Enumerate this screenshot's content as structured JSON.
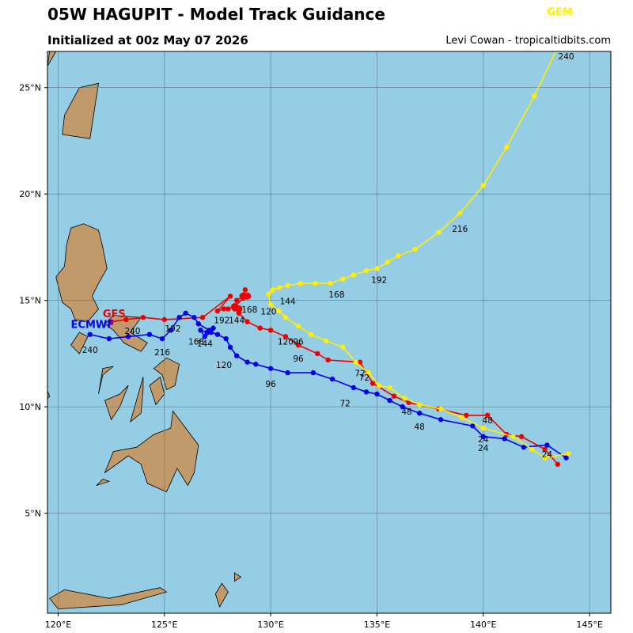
{
  "header": {
    "title": "05W HAGUPIT - Model Track Guidance",
    "subtitle": "Initialized at 00z May 07 2026",
    "credit": "Levi Cowan - tropicaltidbits.com"
  },
  "map": {
    "lon_range": [
      119.5,
      146.0
    ],
    "lat_range": [
      0.3,
      26.7
    ],
    "ocean_color": "#94cde4",
    "land_color": "#c09a6b",
    "lon_ticks": [
      {
        "value": 120,
        "label": "120°E"
      },
      {
        "value": 125,
        "label": "125°E"
      },
      {
        "value": 130,
        "label": "130°E"
      },
      {
        "value": 135,
        "label": "135°E"
      },
      {
        "value": 140,
        "label": "140°E"
      },
      {
        "value": 145,
        "label": "145°E"
      }
    ],
    "lat_ticks": [
      {
        "value": 5,
        "label": "5°N"
      },
      {
        "value": 10,
        "label": "10°N"
      },
      {
        "value": 15,
        "label": "15°N"
      },
      {
        "value": 20,
        "label": "20°N"
      },
      {
        "value": 25,
        "label": "25°N"
      }
    ]
  },
  "tracks": [
    {
      "name": "GFS",
      "color": "#ee0000",
      "points": [
        [
          143.5,
          7.3
        ],
        [
          142.9,
          8.0
        ],
        [
          141.8,
          8.6
        ],
        [
          141.1,
          8.7
        ],
        [
          140.2,
          9.6
        ],
        [
          139.2,
          9.6
        ],
        [
          137.9,
          9.9
        ],
        [
          136.5,
          10.2
        ],
        [
          135.8,
          10.5
        ],
        [
          134.8,
          11.1
        ],
        [
          134.2,
          12.1
        ],
        [
          132.7,
          12.2
        ],
        [
          132.2,
          12.5
        ],
        [
          131.3,
          12.9
        ],
        [
          130.7,
          13.3
        ],
        [
          130.0,
          13.6
        ],
        [
          129.5,
          13.7
        ],
        [
          128.9,
          14.0
        ],
        [
          128.5,
          14.4
        ],
        [
          128.3,
          14.6
        ],
        [
          128.4,
          15.0
        ],
        [
          128.7,
          15.2
        ],
        [
          128.8,
          15.5
        ],
        [
          128.7,
          15.1
        ],
        [
          128.3,
          14.7
        ],
        [
          128.0,
          14.6
        ],
        [
          127.8,
          14.6
        ],
        [
          127.5,
          14.5
        ],
        [
          128.1,
          15.2
        ],
        [
          126.8,
          14.2
        ],
        [
          125.0,
          14.1
        ],
        [
          124.0,
          14.2
        ],
        [
          123.2,
          14.1
        ],
        [
          122.5,
          14.0
        ]
      ],
      "big_points": [
        [
          128.7,
          15.2
        ],
        [
          128.9,
          15.2
        ],
        [
          128.3,
          14.7
        ],
        [
          128.5,
          14.6
        ]
      ],
      "labels": [
        {
          "lon": 143.0,
          "lat": 8.0,
          "text": "24"
        },
        {
          "lon": 140.2,
          "lat": 9.6,
          "text": "48"
        },
        {
          "lon": 134.2,
          "lat": 11.8,
          "text": "72"
        },
        {
          "lon": 131.3,
          "lat": 12.5,
          "text": "96"
        },
        {
          "lon": 130.7,
          "lat": 13.3,
          "text": "120"
        },
        {
          "lon": 128.4,
          "lat": 14.3,
          "text": "144"
        },
        {
          "lon": 129.0,
          "lat": 14.8,
          "text": "168"
        },
        {
          "lon": 127.7,
          "lat": 14.3,
          "text": "192"
        },
        {
          "lon": 123.5,
          "lat": 13.8,
          "text": "240"
        }
      ]
    },
    {
      "name": "ECMWF",
      "color": "#0000ee",
      "points": [
        [
          143.9,
          7.6
        ],
        [
          143.0,
          8.2
        ],
        [
          141.9,
          8.1
        ],
        [
          141.0,
          8.5
        ],
        [
          140.0,
          8.6
        ],
        [
          139.5,
          9.1
        ],
        [
          138.0,
          9.4
        ],
        [
          137.0,
          9.7
        ],
        [
          136.2,
          10.0
        ],
        [
          135.6,
          10.3
        ],
        [
          135.0,
          10.6
        ],
        [
          134.5,
          10.7
        ],
        [
          133.9,
          10.9
        ],
        [
          132.9,
          11.3
        ],
        [
          132.0,
          11.6
        ],
        [
          130.8,
          11.6
        ],
        [
          130.0,
          11.8
        ],
        [
          129.3,
          12.0
        ],
        [
          128.9,
          12.1
        ],
        [
          128.4,
          12.4
        ],
        [
          128.1,
          12.8
        ],
        [
          127.9,
          13.2
        ],
        [
          127.5,
          13.4
        ],
        [
          127.2,
          13.5
        ],
        [
          126.9,
          13.3
        ],
        [
          126.7,
          13.6
        ],
        [
          127.0,
          13.5
        ],
        [
          127.3,
          13.7
        ],
        [
          127.1,
          13.6
        ],
        [
          126.6,
          13.9
        ],
        [
          126.4,
          14.2
        ],
        [
          126.0,
          14.4
        ],
        [
          125.7,
          14.2
        ],
        [
          125.3,
          13.6
        ],
        [
          124.9,
          13.2
        ],
        [
          124.3,
          13.4
        ],
        [
          123.3,
          13.3
        ],
        [
          122.4,
          13.2
        ],
        [
          121.5,
          13.4
        ]
      ],
      "labels": [
        {
          "lon": 140.0,
          "lat": 8.3,
          "text": "24"
        },
        {
          "lon": 137.0,
          "lat": 9.3,
          "text": "48"
        },
        {
          "lon": 133.5,
          "lat": 10.4,
          "text": "72"
        },
        {
          "lon": 130.0,
          "lat": 11.3,
          "text": "96"
        },
        {
          "lon": 127.8,
          "lat": 12.2,
          "text": "120"
        },
        {
          "lon": 126.9,
          "lat": 13.2,
          "text": "144"
        },
        {
          "lon": 126.5,
          "lat": 13.3,
          "text": "168"
        },
        {
          "lon": 125.4,
          "lat": 13.9,
          "text": "192"
        },
        {
          "lon": 124.9,
          "lat": 12.8,
          "text": "216"
        },
        {
          "lon": 121.5,
          "lat": 12.9,
          "text": "240"
        }
      ]
    },
    {
      "name": "GEM",
      "color": "#ffee00",
      "points": [
        [
          144.0,
          7.8
        ],
        [
          142.9,
          7.6
        ],
        [
          142.3,
          8.0
        ],
        [
          141.4,
          8.6
        ],
        [
          140.0,
          9.0
        ],
        [
          139.0,
          9.5
        ],
        [
          138.0,
          9.9
        ],
        [
          137.0,
          10.1
        ],
        [
          136.3,
          10.4
        ],
        [
          135.6,
          10.9
        ],
        [
          135.1,
          11.0
        ],
        [
          134.6,
          11.6
        ],
        [
          134.0,
          12.1
        ],
        [
          133.4,
          12.8
        ],
        [
          132.6,
          13.1
        ],
        [
          131.9,
          13.4
        ],
        [
          131.3,
          13.8
        ],
        [
          130.7,
          14.2
        ],
        [
          130.4,
          14.5
        ],
        [
          130.0,
          14.8
        ],
        [
          129.9,
          15.3
        ],
        [
          130.1,
          15.5
        ],
        [
          130.4,
          15.6
        ],
        [
          130.8,
          15.7
        ],
        [
          131.4,
          15.8
        ],
        [
          132.1,
          15.8
        ],
        [
          132.8,
          15.8
        ],
        [
          133.4,
          16.0
        ],
        [
          133.9,
          16.2
        ],
        [
          134.5,
          16.4
        ],
        [
          135.0,
          16.5
        ],
        [
          135.5,
          16.8
        ],
        [
          136.0,
          17.1
        ],
        [
          136.8,
          17.4
        ],
        [
          137.9,
          18.2
        ],
        [
          138.9,
          19.1
        ],
        [
          140.0,
          20.4
        ],
        [
          141.1,
          22.2
        ],
        [
          142.4,
          24.6
        ],
        [
          143.6,
          27.1
        ]
      ],
      "labels": [
        {
          "lon": 140.0,
          "lat": 8.7,
          "text": "24"
        },
        {
          "lon": 136.4,
          "lat": 10.0,
          "text": "48"
        },
        {
          "lon": 134.4,
          "lat": 11.6,
          "text": "72"
        },
        {
          "lon": 131.3,
          "lat": 13.3,
          "text": "96"
        },
        {
          "lon": 129.9,
          "lat": 14.7,
          "text": "120"
        },
        {
          "lon": 130.8,
          "lat": 15.2,
          "text": "144"
        },
        {
          "lon": 133.1,
          "lat": 15.5,
          "text": "168"
        },
        {
          "lon": 135.1,
          "lat": 16.2,
          "text": "192"
        },
        {
          "lon": 138.9,
          "lat": 18.6,
          "text": "216"
        },
        {
          "lon": 143.9,
          "lat": 26.7,
          "text": "240"
        }
      ]
    }
  ],
  "legend_labels": [
    {
      "text": "GFS",
      "color": "#ee0000",
      "lon": 122.1,
      "lat": 14.2
    },
    {
      "text": "ECMWF",
      "color": "#0000ee",
      "lon": 120.6,
      "lat": 13.7
    },
    {
      "text": "GEM",
      "color": "#ffee00",
      "lon": 143.0,
      "lat": 28.4
    }
  ],
  "land": [
    [
      [
        121.9,
        18.3
      ],
      [
        122.1,
        17.5
      ],
      [
        122.3,
        16.5
      ],
      [
        121.9,
        15.8
      ],
      [
        121.6,
        15.2
      ],
      [
        121.9,
        14.6
      ],
      [
        121.4,
        14.0
      ],
      [
        120.8,
        14.1
      ],
      [
        120.6,
        14.6
      ],
      [
        120.2,
        14.9
      ],
      [
        119.9,
        16.1
      ],
      [
        120.3,
        16.6
      ],
      [
        120.4,
        17.6
      ],
      [
        120.6,
        18.4
      ],
      [
        121.2,
        18.6
      ]
    ],
    [
      [
        123.9,
        14.2
      ],
      [
        123.4,
        13.5
      ],
      [
        124.2,
        13.0
      ],
      [
        123.9,
        12.6
      ],
      [
        123.1,
        13.0
      ],
      [
        122.6,
        13.6
      ],
      [
        122.2,
        13.9
      ],
      [
        122.6,
        14.3
      ]
    ],
    [
      [
        125.7,
        12.0
      ],
      [
        125.5,
        11.0
      ],
      [
        125.1,
        10.8
      ],
      [
        124.9,
        11.5
      ],
      [
        124.5,
        11.8
      ],
      [
        125.1,
        12.3
      ]
    ],
    [
      [
        125.0,
        10.6
      ],
      [
        124.6,
        10.1
      ],
      [
        124.3,
        11.0
      ],
      [
        124.8,
        11.4
      ]
    ],
    [
      [
        124.0,
        11.4
      ],
      [
        123.6,
        10.0
      ],
      [
        123.4,
        9.3
      ],
      [
        123.9,
        9.7
      ],
      [
        124.0,
        10.8
      ]
    ],
    [
      [
        123.3,
        11.0
      ],
      [
        122.9,
        10.0
      ],
      [
        122.5,
        9.4
      ],
      [
        122.2,
        10.3
      ],
      [
        122.9,
        10.6
      ]
    ],
    [
      [
        122.6,
        11.9
      ],
      [
        122.1,
        11.5
      ],
      [
        121.9,
        10.6
      ],
      [
        122.1,
        11.8
      ]
    ],
    [
      [
        121.4,
        13.3
      ],
      [
        121.0,
        12.5
      ],
      [
        120.6,
        12.9
      ],
      [
        121.0,
        13.5
      ]
    ],
    [
      [
        119.6,
        10.5
      ],
      [
        118.6,
        9.3
      ],
      [
        117.4,
        8.4
      ],
      [
        117.3,
        8.7
      ],
      [
        118.6,
        10.0
      ],
      [
        119.4,
        11.0
      ]
    ],
    [
      [
        125.4,
        9.8
      ],
      [
        126.6,
        8.2
      ],
      [
        126.4,
        6.9
      ],
      [
        126.1,
        6.3
      ],
      [
        125.6,
        7.1
      ],
      [
        125.1,
        6.0
      ],
      [
        124.2,
        6.4
      ],
      [
        123.9,
        7.3
      ],
      [
        123.3,
        7.7
      ],
      [
        122.2,
        6.9
      ],
      [
        122.6,
        7.9
      ],
      [
        123.7,
        8.1
      ],
      [
        124.5,
        8.7
      ],
      [
        125.3,
        9.0
      ]
    ],
    [
      [
        122.4,
        6.5
      ],
      [
        121.8,
        6.3
      ],
      [
        122.1,
        6.6
      ]
    ],
    [
      [
        120.3,
        1.4
      ],
      [
        122.4,
        1.0
      ],
      [
        124.8,
        1.5
      ],
      [
        125.1,
        1.3
      ],
      [
        123.0,
        0.7
      ],
      [
        120.0,
        0.5
      ],
      [
        119.6,
        1.0
      ]
    ],
    [
      [
        127.7,
        1.7
      ],
      [
        128.0,
        1.3
      ],
      [
        127.6,
        0.6
      ],
      [
        127.4,
        1.2
      ]
    ],
    [
      [
        128.3,
        2.2
      ],
      [
        128.6,
        2.0
      ],
      [
        128.3,
        1.8
      ]
    ],
    [
      [
        121.9,
        25.2
      ],
      [
        121.5,
        22.6
      ],
      [
        120.2,
        22.8
      ],
      [
        120.3,
        23.7
      ],
      [
        121.0,
        25.0
      ]
    ],
    [
      [
        119.9,
        26.7
      ],
      [
        119.5,
        26.0
      ],
      [
        119.6,
        26.7
      ]
    ]
  ]
}
